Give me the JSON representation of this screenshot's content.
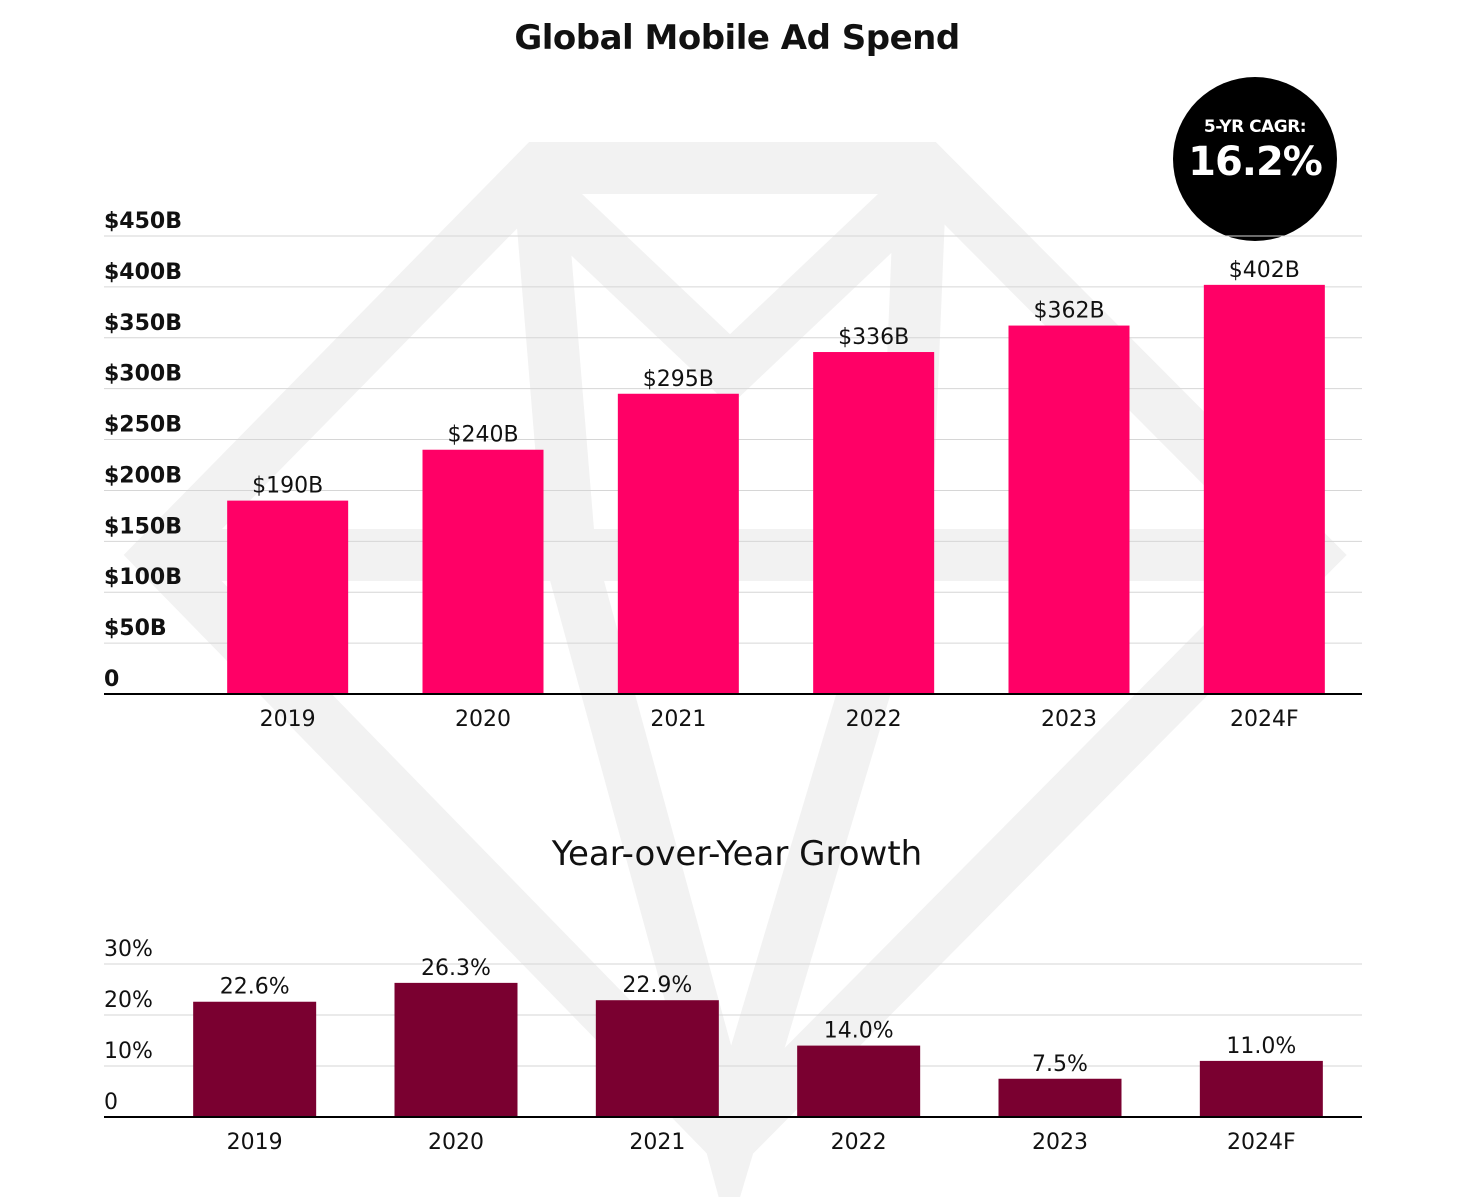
{
  "colors": {
    "spend_bar": "#ff0066",
    "growth_bar": "#7a0030",
    "gridline": "#d6d6d6",
    "axis": "#000000",
    "badge_bg": "#000000",
    "badge_text": "#ffffff",
    "watermark": "#f2f2f2"
  },
  "badge": {
    "label": "5-YR CAGR:",
    "value": "16.2%"
  },
  "chart_data": [
    {
      "type": "bar",
      "title": "Global Mobile Ad Spend",
      "categories": [
        "2019",
        "2020",
        "2021",
        "2022",
        "2023",
        "2024F"
      ],
      "values": [
        190,
        240,
        295,
        336,
        362,
        402
      ],
      "data_labels": [
        "$190B",
        "$240B",
        "$295B",
        "$336B",
        "$362B",
        "$402B"
      ],
      "y_ticks": [
        0,
        50,
        100,
        150,
        200,
        250,
        300,
        350,
        400,
        450
      ],
      "y_tick_labels": [
        "0",
        "$50B",
        "$100B",
        "$150B",
        "$200B",
        "$250B",
        "$300B",
        "$350B",
        "$400B",
        "$450B"
      ],
      "ylim": [
        0,
        450
      ],
      "xlabel": "",
      "ylabel": "",
      "grid": true,
      "legend": "none"
    },
    {
      "type": "bar",
      "title": "Year-over-Year Growth",
      "categories": [
        "2019",
        "2020",
        "2021",
        "2022",
        "2023",
        "2024F"
      ],
      "values": [
        22.6,
        26.3,
        22.9,
        14.0,
        7.5,
        11.0
      ],
      "data_labels": [
        "22.6%",
        "26.3%",
        "22.9%",
        "14.0%",
        "7.5%",
        "11.0%"
      ],
      "y_ticks": [
        0,
        10,
        20,
        30
      ],
      "y_tick_labels": [
        "0",
        "10%",
        "20%",
        "30%"
      ],
      "ylim": [
        0,
        30
      ],
      "xlabel": "",
      "ylabel": "",
      "grid": true,
      "legend": "none"
    }
  ]
}
